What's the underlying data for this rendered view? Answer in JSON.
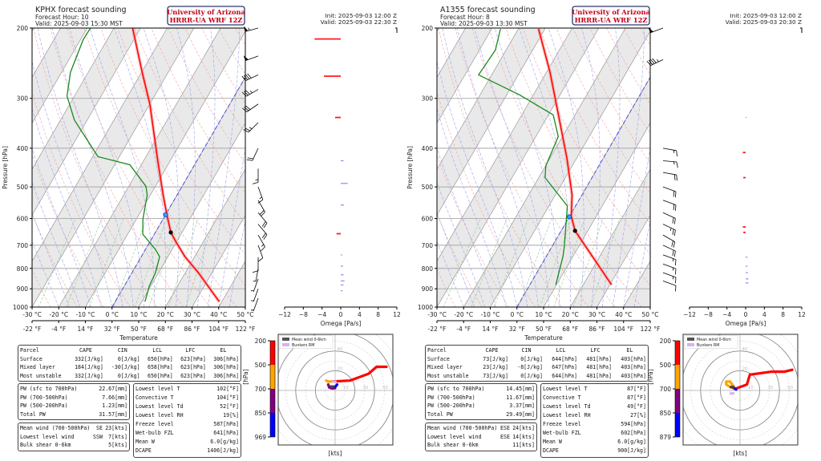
{
  "axes": {
    "pressure_label": "Pressure [hPa]",
    "pressure_ticks": [
      "200",
      "300",
      "400",
      "500",
      "600",
      "700",
      "800",
      "900",
      "1000"
    ],
    "celsius_ticks": [
      "-30 °C",
      "-20 °C",
      "-10 °C",
      "0 °C",
      "10 °C",
      "20 °C",
      "30 °C",
      "40 °C",
      "50 °C"
    ],
    "fahrenheit_ticks": [
      "-22 °F",
      "-4 °F",
      "14 °F",
      "32 °F",
      "50 °F",
      "68 °F",
      "86 °F",
      "104 °F",
      "122 °F"
    ],
    "temperature_label": "Temperature",
    "omega_ticks": [
      "−12",
      "−8",
      "−4",
      "0",
      "4",
      "8",
      "12"
    ],
    "omega_label": "Omega [Pa/s]",
    "hodo_unit": "[kts]",
    "hodo_cbar_unit": "[hPa]",
    "hodo_ring_labels": [
      "10",
      "20",
      "30",
      "40",
      "50"
    ],
    "legend_mean_wind": "Mean wind 0-6km",
    "legend_bunkers": "Bunkers RM",
    "parcel_headers": [
      "Parcel",
      "CAPE",
      "CIN",
      "LCL",
      "LFC",
      "EL"
    ]
  },
  "colors": {
    "temperature": "#ff0000",
    "dewpoint": "#1a8a1a",
    "logo_text": "#c0001a",
    "logo_border": "#2a3a6a",
    "hodo_segments": [
      "#ff0000",
      "#ffa500",
      "#800080",
      "#0000ff"
    ]
  },
  "panels": [
    {
      "title": "KPHX forecast sounding",
      "forecast_hour": "Forecast Hour: 10",
      "valid_local": "Valid: 2025-09-03 15:30 MST",
      "logo_line1": "University of Arizona",
      "logo_line2": "HRRR-UA WRF 12Z",
      "init": "Init: 2025-09-03 12:00 Z",
      "valid_utc": "Valid: 2025-09-03 22:30 Z",
      "parcel_rows": [
        [
          "Surface",
          "332[J/kg]",
          "0[J/kg]",
          "650[hPa]",
          "623[hPa]",
          "306[hPa]"
        ],
        [
          "Mixed layer",
          "184[J/kg]",
          "-30[J/kg]",
          "658[hPa]",
          "623[hPa]",
          "306[hPa]"
        ],
        [
          "Most unstable",
          "332[J/kg]",
          "0[J/kg]",
          "650[hPa]",
          "623[hPa]",
          "306[hPa]"
        ]
      ],
      "pw_rows": [
        [
          "PW (sfc to 700hPa)",
          "22.67[mm]"
        ],
        [
          "PW (700-500hPa)",
          "7.66[mm]"
        ],
        [
          "PW (500-200hPa)",
          "1.23[mm]"
        ],
        [
          "Total PW",
          "31.57[mm]"
        ]
      ],
      "wind_rows": [
        [
          "Mean wind (700-500hPa)",
          "SE",
          "23[kts]"
        ],
        [
          "Lowest level wind",
          "SSW",
          "7[kts]"
        ],
        [
          "Bulk shear 0-6km",
          "",
          "5[kts]"
        ]
      ],
      "param_rows": [
        [
          "Lowest level T",
          "102[°F]"
        ],
        [
          "Convective T",
          "104[°F]"
        ],
        [
          "Lowest level Td",
          "52[°F]"
        ],
        [
          "Lowest level RH",
          "19[%]"
        ],
        [
          "Freeze level",
          "587[hPa]"
        ],
        [
          "Wet-bulb FZL",
          "641[hPa]"
        ],
        [
          "Mean W",
          "6.0[g/kg]"
        ],
        [
          "DCAPE",
          "1406[J/kg]"
        ]
      ],
      "hodo_levels": [
        "200",
        "500",
        "700",
        "850",
        "969"
      ]
    },
    {
      "title": "A1355 forecast sounding",
      "forecast_hour": "Forecast Hour: 8",
      "valid_local": "Valid: 2025-09-03 13:30 MST",
      "logo_line1": "University of Arizona",
      "logo_line2": "HRRR-UA WRF 12Z",
      "init": "Init: 2025-09-03 12:00 Z",
      "valid_utc": "Valid: 2025-09-03 20:30 Z",
      "parcel_rows": [
        [
          "Surface",
          "73[J/kg]",
          "0[J/kg]",
          "644[hPa]",
          "481[hPa]",
          "403[hPa]"
        ],
        [
          "Mixed layer",
          "23[J/kg]",
          "-8[J/kg]",
          "647[hPa]",
          "481[hPa]",
          "403[hPa]"
        ],
        [
          "Most unstable",
          "73[J/kg]",
          "0[J/kg]",
          "644[hPa]",
          "481[hPa]",
          "403[hPa]"
        ]
      ],
      "pw_rows": [
        [
          "PW (sfc to 700hPa)",
          "14.45[mm]"
        ],
        [
          "PW (700-500hPa)",
          "11.67[mm]"
        ],
        [
          "PW (500-200hPa)",
          "3.37[mm]"
        ],
        [
          "Total PW",
          "29.49[mm]"
        ]
      ],
      "wind_rows": [
        [
          "Mean wind (700-500hPa)",
          "ESE",
          "24[kts]"
        ],
        [
          "Lowest level wind",
          "ESE",
          "14[kts]"
        ],
        [
          "Bulk shear 0-6km",
          "",
          "11[kts]"
        ]
      ],
      "param_rows": [
        [
          "Lowest level T",
          "87[°F]"
        ],
        [
          "Convective T",
          "87[°F]"
        ],
        [
          "Lowest level Td",
          "49[°F]"
        ],
        [
          "Lowest level RH",
          "27[%]"
        ],
        [
          "Freeze level",
          "594[hPa]"
        ],
        [
          "Wet-bulb FZL",
          "602[hPa]"
        ],
        [
          "Mean W",
          "6.0[g/kg]"
        ],
        [
          "DCAPE",
          "900[J/kg]"
        ]
      ],
      "hodo_levels": [
        "200",
        "500",
        "700",
        "850",
        "879"
      ]
    }
  ],
  "chart_data": [
    {
      "type": "line",
      "panel": 0,
      "kind": "skew-t",
      "xlim": [
        -30,
        50
      ],
      "ylim": [
        1000,
        200
      ],
      "yscale": "log",
      "temperature": [
        [
          969,
          39
        ],
        [
          820,
          24.9
        ],
        [
          748,
          16.4
        ],
        [
          686,
          9.7
        ],
        [
          650,
          5.8
        ],
        [
          592,
          0.9
        ],
        [
          524,
          -5.2
        ],
        [
          429,
          -14.8
        ],
        [
          310,
          -30
        ],
        [
          258,
          -39.8
        ],
        [
          200,
          -53
        ]
      ],
      "dewpoint": [
        [
          969,
          11.2
        ],
        [
          886,
          9.4
        ],
        [
          820,
          8.8
        ],
        [
          748,
          6.9
        ],
        [
          717,
          3.7
        ],
        [
          657,
          -4.3
        ],
        [
          601,
          -7.6
        ],
        [
          524,
          -11.2
        ],
        [
          498,
          -13.6
        ],
        [
          440,
          -24.3
        ],
        [
          420,
          -38
        ],
        [
          340,
          -54.8
        ],
        [
          296,
          -62.8
        ],
        [
          258,
          -66.7
        ],
        [
          214,
          -69
        ],
        [
          200,
          -68.8
        ]
      ],
      "lcl_hPa": 650,
      "freeze_level_hPa": 587,
      "wind_barbs": [
        [
          200,
          255,
          55
        ],
        [
          235,
          250,
          50
        ],
        [
          262,
          245,
          40
        ],
        [
          285,
          240,
          35
        ],
        [
          310,
          235,
          30
        ],
        [
          345,
          225,
          25
        ],
        [
          400,
          205,
          20
        ],
        [
          450,
          180,
          15
        ],
        [
          500,
          160,
          15
        ],
        [
          540,
          150,
          20
        ],
        [
          580,
          140,
          22
        ],
        [
          620,
          140,
          20
        ],
        [
          660,
          150,
          15
        ],
        [
          700,
          160,
          12
        ],
        [
          750,
          180,
          10
        ],
        [
          800,
          190,
          8
        ],
        [
          850,
          200,
          7
        ],
        [
          900,
          200,
          7
        ],
        [
          950,
          200,
          7
        ]
      ]
    },
    {
      "type": "bar",
      "panel": 0,
      "kind": "omega",
      "xlim": [
        -12,
        12
      ],
      "unit": "Pa/s",
      "bars": [
        [
          213,
          -5.6
        ],
        [
          264,
          -3.6
        ],
        [
          335,
          -1.2
        ],
        [
          430,
          0.6
        ],
        [
          490,
          1.5
        ],
        [
          555,
          0.7
        ],
        [
          655,
          -0.9
        ],
        [
          740,
          0.3
        ],
        [
          790,
          0.5
        ],
        [
          830,
          0.6
        ],
        [
          860,
          0.8
        ],
        [
          880,
          0.6
        ],
        [
          910,
          0.4
        ]
      ]
    },
    {
      "type": "line",
      "panel": 0,
      "kind": "hodograph",
      "unit": "kts",
      "segments": [
        {
          "layer": "200-500",
          "points": [
            [
              -3.5,
              9
            ],
            [
              15,
              10
            ],
            [
              34,
              17
            ],
            [
              42,
              24
            ],
            [
              52,
              24
            ]
          ]
        },
        {
          "layer": "500-700",
          "points": [
            [
              -9,
              10
            ],
            [
              -7,
              9
            ],
            [
              -3.5,
              9
            ]
          ]
        },
        {
          "layer": "700-850",
          "points": [
            [
              -7,
              6
            ],
            [
              -6,
              3
            ],
            [
              -3,
              2
            ],
            [
              0,
              2.4
            ]
          ]
        },
        {
          "layer": "850-969",
          "points": [
            [
              0,
              3.5
            ],
            [
              2,
              6
            ]
          ]
        }
      ],
      "mean_wind": [
        -3,
        4
      ],
      "bunkers_rm": [
        -1,
        9
      ]
    },
    {
      "type": "line",
      "panel": 1,
      "kind": "skew-t",
      "xlim": [
        -30,
        50
      ],
      "ylim": [
        1000,
        200
      ],
      "yscale": "log",
      "temperature": [
        [
          879,
          30.6
        ],
        [
          644,
          5.2
        ],
        [
          592,
          0.6
        ],
        [
          524,
          -3.7
        ],
        [
          424,
          -13.6
        ],
        [
          320,
          -27.8
        ],
        [
          258,
          -38.7
        ],
        [
          201,
          -52.4
        ]
      ],
      "dewpoint": [
        [
          879,
          9.7
        ],
        [
          748,
          6.3
        ],
        [
          705,
          4.6
        ],
        [
          558,
          -3.1
        ],
        [
          474,
          -17.6
        ],
        [
          443,
          -19.9
        ],
        [
          374,
          -21.6
        ],
        [
          330,
          -28.2
        ],
        [
          294,
          -45.2
        ],
        [
          262,
          -64.9
        ],
        [
          227,
          -64
        ],
        [
          201,
          -66.7
        ]
      ],
      "lcl_hPa": 644,
      "freeze_level_hPa": 594,
      "wind_barbs": [
        [
          200,
          250,
          50
        ],
        [
          240,
          245,
          45
        ],
        [
          400,
          100,
          15
        ],
        [
          430,
          95,
          15
        ],
        [
          460,
          100,
          20
        ],
        [
          500,
          110,
          20
        ],
        [
          540,
          110,
          22
        ],
        [
          580,
          115,
          24
        ],
        [
          620,
          115,
          25
        ],
        [
          660,
          120,
          22
        ],
        [
          700,
          115,
          20
        ],
        [
          740,
          110,
          18
        ],
        [
          780,
          110,
          16
        ],
        [
          820,
          110,
          15
        ],
        [
          860,
          110,
          14
        ]
      ]
    },
    {
      "type": "bar",
      "panel": 1,
      "kind": "omega",
      "xlim": [
        -12,
        12
      ],
      "unit": "Pa/s",
      "bars": [
        [
          335,
          0.2
        ],
        [
          410,
          -0.6
        ],
        [
          474,
          -0.5
        ],
        [
          630,
          -0.6
        ],
        [
          650,
          -0.5
        ],
        [
          750,
          0.4
        ],
        [
          790,
          0.4
        ],
        [
          820,
          0.5
        ],
        [
          850,
          0.6
        ],
        [
          870,
          0.6
        ]
      ]
    },
    {
      "type": "line",
      "panel": 1,
      "kind": "hodograph",
      "unit": "kts",
      "segments": [
        {
          "layer": "200-500",
          "points": [
            [
              -5,
              1.6
            ],
            [
              7,
              6
            ],
            [
              10,
              16
            ],
            [
              32,
              19
            ],
            [
              45,
              19
            ],
            [
              53,
              21
            ]
          ]
        },
        {
          "layer": "500-700",
          "points": [
            [
              -5,
              1.6
            ],
            [
              -10,
              3.5
            ],
            [
              -14,
              6
            ],
            [
              -14,
              9
            ],
            [
              -10,
              9
            ],
            [
              -8,
              6
            ],
            [
              -6,
              3.5
            ]
          ]
        },
        {
          "layer": "700-850",
          "points": [
            [
              -8,
              3.5
            ],
            [
              -5,
              1.6
            ]
          ]
        },
        {
          "layer": "850-879",
          "points": [
            [
              -5,
              1.6
            ],
            [
              -4,
              1
            ]
          ]
        }
      ],
      "mean_wind": [
        -8,
        3.5
      ],
      "bunkers_rm": [
        -8,
        -3
      ]
    }
  ]
}
